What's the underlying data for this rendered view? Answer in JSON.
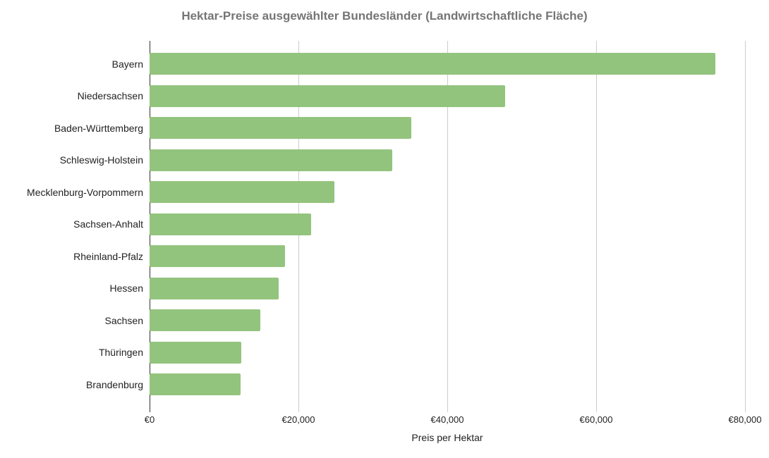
{
  "chart_data": {
    "type": "bar",
    "orientation": "horizontal",
    "title": "Hektar-Preise ausgewählter Bundesländer (Landwirtschaftliche Fläche)",
    "xlabel": "Preis per Hektar",
    "categories": [
      "Bayern",
      "Niedersachsen",
      "Baden-Württemberg",
      "Schleswig-Holstein",
      "Mecklenburg-Vorpommern",
      "Sachsen-Anhalt",
      "Rheinland-Pfalz",
      "Hessen",
      "Sachsen",
      "Thüringen",
      "Brandenburg"
    ],
    "values": [
      76000,
      47800,
      35200,
      32600,
      24800,
      21700,
      18200,
      17300,
      14900,
      12300,
      12200
    ],
    "xlim": [
      0,
      80000
    ],
    "x_ticks": [
      {
        "value": 0,
        "label": "€0"
      },
      {
        "value": 20000,
        "label": "€20,000"
      },
      {
        "value": 40000,
        "label": "€40,000"
      },
      {
        "value": 60000,
        "label": "€60,000"
      },
      {
        "value": 80000,
        "label": "€80,000"
      }
    ],
    "grid": true,
    "legend": "none",
    "colors": {
      "bar": "#93c47d",
      "gridline": "#cccccc",
      "baseline": "#333333",
      "title_text": "#757575",
      "axis_text": "#222222"
    }
  }
}
